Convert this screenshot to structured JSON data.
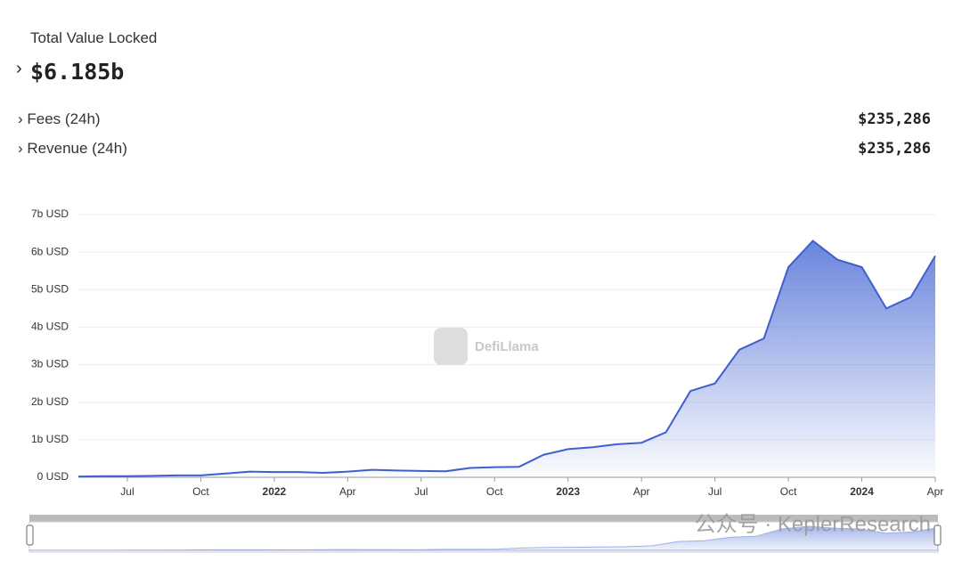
{
  "header": {
    "title": "Total Value Locked",
    "value": "$6.185b",
    "rows": [
      {
        "label": "Fees (24h)",
        "value": "$235,286"
      },
      {
        "label": "Revenue (24h)",
        "value": "$235,286"
      }
    ]
  },
  "chart_data": {
    "type": "area",
    "color": "#3f5fcf",
    "x": [
      "2021-05",
      "2021-06",
      "2021-07",
      "2021-08",
      "2021-09",
      "2021-10",
      "2021-11",
      "2021-12",
      "2022-01",
      "2022-02",
      "2022-03",
      "2022-04",
      "2022-05",
      "2022-06",
      "2022-07",
      "2022-08",
      "2022-09",
      "2022-10",
      "2022-11",
      "2022-12",
      "2023-01",
      "2023-02",
      "2023-03",
      "2023-04",
      "2023-05",
      "2023-06",
      "2023-07",
      "2023-08",
      "2023-09",
      "2023-10",
      "2023-11",
      "2023-12",
      "2024-01",
      "2024-02",
      "2024-03",
      "2024-04"
    ],
    "values": [
      0.02,
      0.03,
      0.03,
      0.04,
      0.05,
      0.05,
      0.1,
      0.15,
      0.14,
      0.14,
      0.12,
      0.15,
      0.2,
      0.18,
      0.17,
      0.16,
      0.25,
      0.27,
      0.28,
      0.6,
      0.75,
      0.8,
      0.88,
      0.92,
      1.2,
      2.3,
      2.5,
      3.4,
      3.7,
      5.6,
      6.3,
      5.8,
      5.6,
      4.5,
      4.8,
      5.9
    ],
    "xlim": [
      "2021-05",
      "2024-04"
    ],
    "xticks": [
      {
        "value": "2021-07",
        "label": "Jul"
      },
      {
        "value": "2021-10",
        "label": "Oct"
      },
      {
        "value": "2022-01",
        "label": "2022"
      },
      {
        "value": "2022-04",
        "label": "Apr"
      },
      {
        "value": "2022-07",
        "label": "Jul"
      },
      {
        "value": "2022-10",
        "label": "Oct"
      },
      {
        "value": "2023-01",
        "label": "2023"
      },
      {
        "value": "2023-04",
        "label": "Apr"
      },
      {
        "value": "2023-07",
        "label": "Jul"
      },
      {
        "value": "2023-10",
        "label": "Oct"
      },
      {
        "value": "2024-01",
        "label": "2024"
      },
      {
        "value": "2024-04",
        "label": "Apr"
      }
    ],
    "ylim": [
      0,
      7
    ],
    "yticks": [
      {
        "value": 0,
        "label": "0 USD"
      },
      {
        "value": 1,
        "label": "1b USD"
      },
      {
        "value": 2,
        "label": "2b USD"
      },
      {
        "value": 3,
        "label": "3b USD"
      },
      {
        "value": 4,
        "label": "4b USD"
      },
      {
        "value": 5,
        "label": "5b USD"
      },
      {
        "value": 6,
        "label": "6b USD"
      },
      {
        "value": 7,
        "label": "7b USD"
      }
    ],
    "grid": true,
    "watermark": "DefiLlama"
  },
  "overlay_text": "公众号 · KeplerResearch"
}
